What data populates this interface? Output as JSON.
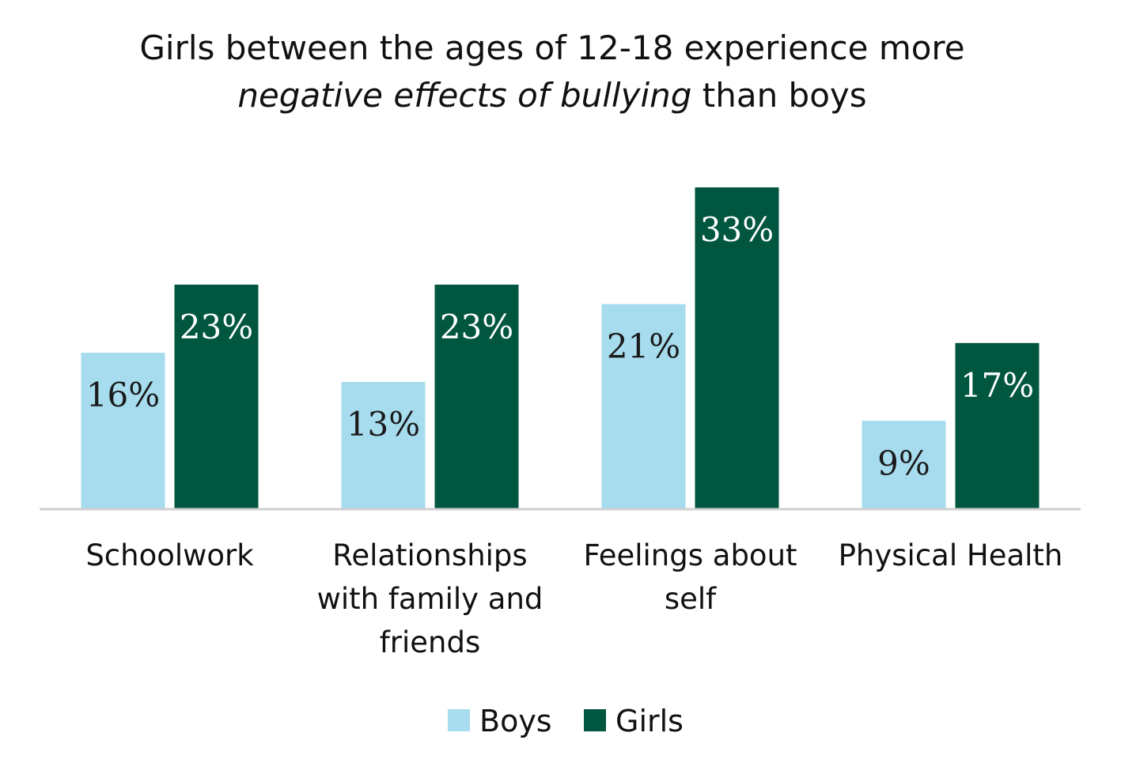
{
  "chart_data": {
    "type": "bar",
    "title_line1": "Girls between the ages of 12-18 experience more",
    "title_line2_italic": "negative effects of bullying",
    "title_line2_rest": " than boys",
    "categories": [
      [
        "Schoolwork"
      ],
      [
        "Relationships",
        "with family and",
        "friends"
      ],
      [
        "Feelings about",
        "self"
      ],
      [
        "Physical Health"
      ]
    ],
    "series": [
      {
        "name": "Boys",
        "values": [
          16,
          13,
          21,
          9
        ],
        "labels": [
          "16%",
          "13%",
          "21%",
          "9%"
        ],
        "color": "#a6dcee",
        "label_color": "#1a1a1a"
      },
      {
        "name": "Girls",
        "values": [
          23,
          23,
          33,
          17
        ],
        "labels": [
          "23%",
          "23%",
          "33%",
          "17%"
        ],
        "color": "#00563f",
        "label_color": "#ffffff"
      }
    ],
    "ylim": [
      0,
      33
    ],
    "xlabel": "",
    "ylabel": "",
    "grid": false,
    "legend_position": "bottom-center",
    "axis_color": "#d0d0d0"
  }
}
